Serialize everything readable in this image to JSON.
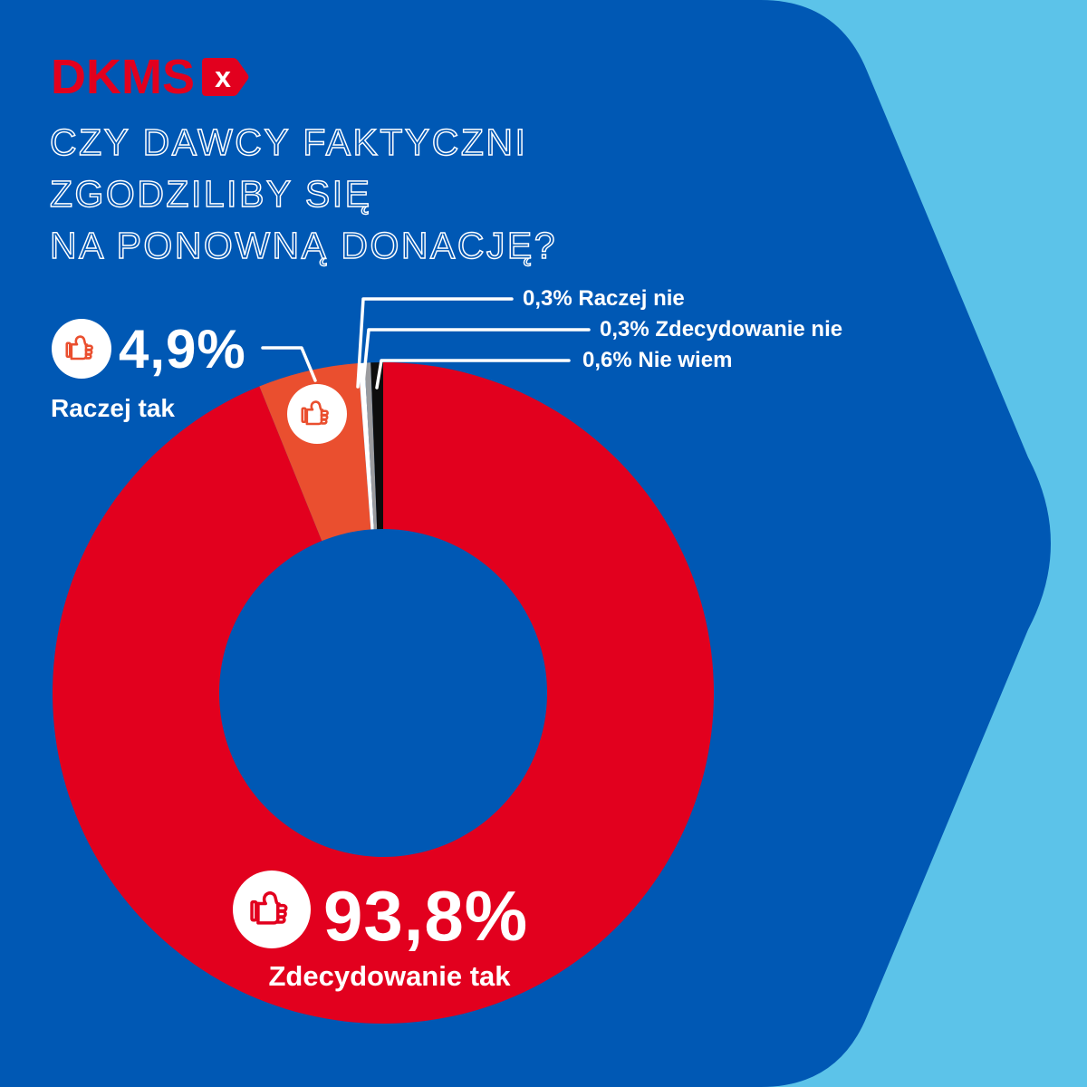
{
  "logo": {
    "text": "DKMS",
    "x_label": "x"
  },
  "title": {
    "line1": "CZY DAWCY FAKTYCZNI",
    "line2": "ZGODZILIBY SIĘ",
    "line3": "NA PONOWNĄ DONACJĘ?"
  },
  "colors": {
    "background": "#5CC3E9",
    "panel": "#0058B4",
    "red": "#E2001E",
    "orange": "#EA4F2F",
    "sliver_white": "#FFFFFF",
    "sliver_gray": "#9B9B9E",
    "sliver_black": "#0D0D0D",
    "callout": "#FFFFFF"
  },
  "chart_data": {
    "type": "pie",
    "donut": true,
    "title": "CZY DAWCY FAKTYCZNI ZGODZILIBY SIĘ NA PONOWNĄ DONACJĘ?",
    "start_angle_deg": 0,
    "direction": "clockwise",
    "inner_radius_ratio": 0.5,
    "series": [
      {
        "name": "Zdecydowanie tak",
        "value": 93.8,
        "display": "93,8%",
        "color": "#E2001E"
      },
      {
        "name": "Raczej tak",
        "value": 4.9,
        "display": "4,9%",
        "color": "#EA4F2F"
      },
      {
        "name": "Raczej nie",
        "value": 0.3,
        "display": "0,3%",
        "color": "#FFFFFF"
      },
      {
        "name": "Zdecydowanie nie",
        "value": 0.3,
        "display": "0,3%",
        "color": "#9B9B9E"
      },
      {
        "name": "Nie wiem",
        "value": 0.6,
        "display": "0,6%",
        "color": "#0D0D0D"
      }
    ]
  },
  "labels": {
    "raczej_tak": {
      "value": "4,9%",
      "name": "Raczej tak"
    },
    "zdecydowanie_tak": {
      "value": "93,8%",
      "name": "Zdecydowanie tak"
    },
    "raczej_nie": {
      "text": "0,3% Raczej nie"
    },
    "zdecydowanie_nie": {
      "text": "0,3% Zdecydowanie nie"
    },
    "nie_wiem": {
      "text": "0,6% Nie wiem"
    }
  }
}
